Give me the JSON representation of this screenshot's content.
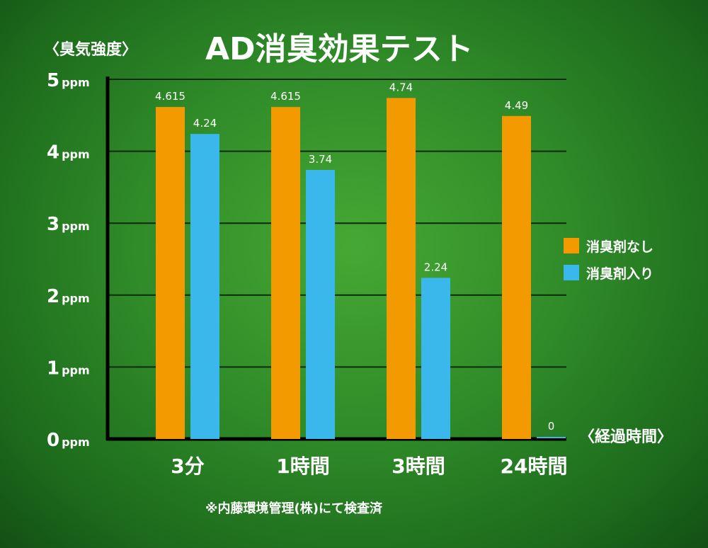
{
  "chart_data": {
    "type": "bar",
    "title": "AD消臭効果テスト",
    "ylabel": "〈臭気強度〉",
    "xlabel": "〈経過時間〉",
    "categories": [
      "3分",
      "1時間",
      "3時間",
      "24時間"
    ],
    "series": [
      {
        "name": "消臭剤なし",
        "values": [
          4.615,
          4.615,
          4.74,
          4.49
        ],
        "labels": [
          "4.615",
          "4.615",
          "4.74",
          "4.49"
        ],
        "color": "#f39a00"
      },
      {
        "name": "消臭剤入り",
        "values": [
          4.24,
          3.74,
          2.24,
          0
        ],
        "labels": [
          "4.24",
          "3.74",
          "2.24",
          "0"
        ],
        "color": "#3ab8ec"
      }
    ],
    "ylim": [
      0,
      5
    ],
    "yticks": [
      {
        "value": 0,
        "number": "0",
        "unit": "ppm"
      },
      {
        "value": 1,
        "number": "1",
        "unit": "ppm"
      },
      {
        "value": 2,
        "number": "2",
        "unit": "ppm"
      },
      {
        "value": 3,
        "number": "3",
        "unit": "ppm"
      },
      {
        "value": 4,
        "number": "4",
        "unit": "ppm"
      },
      {
        "value": 5,
        "number": "5",
        "unit": "ppm"
      }
    ],
    "grid": true,
    "legend_position": "right",
    "note": "※内藤環境管理(株)にて検査済"
  }
}
